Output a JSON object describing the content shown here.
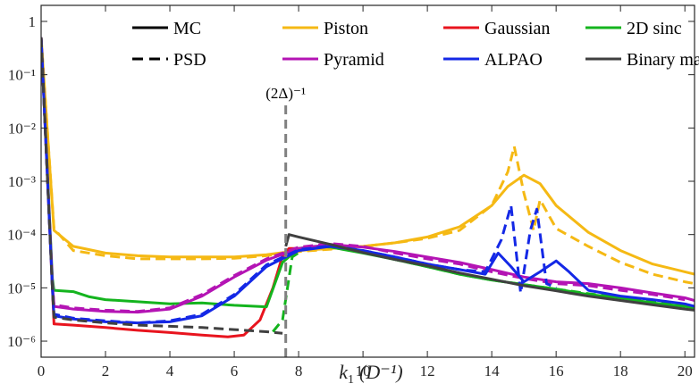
{
  "chart_data": {
    "type": "line",
    "title": "",
    "xlabel": "k",
    "xlabel_sub": "1",
    "xlabel_unit": "(D⁻¹)",
    "ylabel": "",
    "xlim": [
      0,
      20.3
    ],
    "yscale": "log",
    "ylim": [
      5e-07,
      2
    ],
    "x_ticks": [
      0,
      2,
      4,
      6,
      8,
      10,
      12,
      14,
      16,
      18,
      20
    ],
    "y_ticks": [
      {
        "value": 1,
        "label": "1"
      },
      {
        "value": 0.1,
        "label": "10⁻¹"
      },
      {
        "value": 0.01,
        "label": "10⁻²"
      },
      {
        "value": 0.001,
        "label": "10⁻³"
      },
      {
        "value": 0.0001,
        "label": "10⁻⁴"
      },
      {
        "value": 1e-05,
        "label": "10⁻⁵"
      },
      {
        "value": 1e-06,
        "label": "10⁻⁶"
      }
    ],
    "annotation": {
      "label": "(2Δ)⁻¹",
      "x": 7.6
    },
    "legend": {
      "position": "top",
      "entries": [
        {
          "label": "MC",
          "color": "#000000",
          "dash": "solid"
        },
        {
          "label": "Piston",
          "color": "#f5b914",
          "dash": "solid"
        },
        {
          "label": "Gaussian",
          "color": "#e8141e",
          "dash": "solid"
        },
        {
          "label": "2D sinc",
          "color": "#14b41e",
          "dash": "solid"
        },
        {
          "label": "PSD",
          "color": "#000000",
          "dash": "dashed"
        },
        {
          "label": "Pyramid",
          "color": "#b414b4",
          "dash": "solid"
        },
        {
          "label": "ALPAO",
          "color": "#1428e6",
          "dash": "solid"
        },
        {
          "label": "Binary mask",
          "color": "#404040",
          "dash": "solid"
        }
      ]
    },
    "series": [
      {
        "name": "Piston",
        "style": "solid",
        "color": "#f5b914",
        "x": [
          0,
          0.4,
          1,
          2,
          3,
          4,
          5,
          6,
          7,
          8,
          9,
          10,
          11,
          12,
          13,
          14,
          14.5,
          15,
          15.5,
          16,
          17,
          18,
          19,
          20,
          20.3
        ],
        "y": [
          0.5,
          0.00012,
          6e-05,
          4.5e-05,
          4e-05,
          3.8e-05,
          3.8e-05,
          3.8e-05,
          4.2e-05,
          5e-05,
          5.5e-05,
          6e-05,
          7e-05,
          9e-05,
          0.00014,
          0.00035,
          0.0008,
          0.0013,
          0.0009,
          0.00035,
          0.00011,
          5e-05,
          2.8e-05,
          2e-05,
          1.8e-05
        ]
      },
      {
        "name": "Piston PSD",
        "style": "dashed",
        "color": "#f5b914",
        "x": [
          0,
          0.4,
          1,
          2,
          3,
          4,
          5,
          6,
          7,
          8,
          9,
          10,
          11,
          12,
          13,
          14,
          14.5,
          14.7,
          15,
          15.3,
          15.5,
          16,
          17,
          18,
          19,
          20,
          20.3
        ],
        "y": [
          0.5,
          0.00013,
          5e-05,
          4e-05,
          3.5e-05,
          3.5e-05,
          3.5e-05,
          3.6e-05,
          4e-05,
          4.8e-05,
          5.3e-05,
          6e-05,
          7e-05,
          8.5e-05,
          0.00012,
          0.00035,
          0.0015,
          0.0045,
          0.0006,
          0.00012,
          0.00045,
          0.00013,
          6e-05,
          3e-05,
          1.8e-05,
          1.3e-05,
          1.2e-05
        ]
      },
      {
        "name": "Gaussian",
        "style": "solid",
        "color": "#e8141e",
        "x": [
          0,
          0.35,
          0.4,
          1,
          2,
          3,
          4,
          5,
          5.8,
          6.3,
          6.8,
          7.2,
          7.5,
          7.7,
          8,
          8.5
        ],
        "y": [
          0.5,
          1e-05,
          2.1e-06,
          2e-06,
          1.8e-06,
          1.6e-06,
          1.45e-06,
          1.3e-06,
          1.2e-06,
          1.3e-06,
          2.5e-06,
          1e-05,
          4e-05,
          5.5e-05,
          5.5e-05,
          5.6e-05
        ]
      },
      {
        "name": "2D sinc",
        "style": "solid",
        "color": "#14b41e",
        "x": [
          0,
          0.35,
          0.4,
          1,
          1.5,
          2,
          3,
          4,
          5,
          6,
          7,
          7.5,
          8,
          8.5,
          9,
          10,
          11,
          12,
          13,
          14,
          15,
          16,
          17,
          18,
          19,
          20,
          20.3
        ],
        "y": [
          0.5,
          1.5e-05,
          9e-06,
          8.5e-06,
          6.8e-06,
          6e-06,
          5.5e-06,
          5e-06,
          5.2e-06,
          4.7e-06,
          4.4e-06,
          3e-05,
          5.5e-05,
          6e-05,
          5.8e-05,
          4.5e-05,
          3.4e-05,
          2.5e-05,
          1.8e-05,
          1.4e-05,
          1.15e-05,
          9.5e-06,
          7.5e-06,
          6.5e-06,
          5.2e-06,
          4.5e-06,
          4.2e-06
        ]
      },
      {
        "name": "2D sinc PSD",
        "style": "dashed",
        "color": "#14b41e",
        "x": [
          7.2,
          7.5,
          7.8,
          8.2,
          9,
          10,
          11,
          12,
          13,
          14,
          15,
          16,
          17,
          18,
          19,
          20
        ],
        "y": [
          1.5e-06,
          2.5e-06,
          3.8e-05,
          5.5e-05,
          6e-05,
          4.6e-05,
          3.4e-05,
          2.5e-05,
          1.8e-05,
          1.4e-05,
          1.15e-05,
          9.5e-06,
          7.8e-06,
          6.5e-06,
          5.5e-06,
          4.6e-06
        ]
      },
      {
        "name": "Pyramid",
        "style": "solid",
        "color": "#b414b4",
        "x": [
          0,
          0.35,
          0.4,
          1,
          2,
          3,
          4,
          5,
          6,
          7,
          8,
          9,
          10,
          11,
          12,
          13,
          14,
          15,
          16,
          17,
          18,
          19,
          20,
          20.3
        ],
        "y": [
          0.5,
          1.2e-05,
          4.5e-06,
          4e-06,
          3.6e-06,
          3.5e-06,
          4e-06,
          7e-06,
          1.6e-05,
          3.3e-05,
          5.5e-05,
          6.5e-05,
          5.8e-05,
          4.8e-05,
          3.8e-05,
          3e-05,
          2.2e-05,
          1.6e-05,
          1.3e-05,
          1.2e-05,
          1e-05,
          8e-06,
          6.5e-06,
          5.8e-06
        ]
      },
      {
        "name": "Pyramid PSD",
        "style": "dashed",
        "color": "#b414b4",
        "x": [
          0,
          0.35,
          0.4,
          1,
          2,
          3,
          4,
          5,
          6,
          7,
          8,
          9,
          10,
          11,
          12,
          13,
          14,
          15,
          16,
          17,
          18,
          19,
          20
        ],
        "y": [
          0.5,
          1.3e-05,
          4.8e-06,
          4.2e-06,
          3.8e-06,
          3.6e-06,
          4.2e-06,
          7.5e-06,
          1.7e-05,
          3.5e-05,
          5.8e-05,
          6.8e-05,
          6e-05,
          4.5e-05,
          3.5e-05,
          2.8e-05,
          2e-05,
          1.5e-05,
          1.2e-05,
          1.1e-05,
          9e-06,
          7.5e-06,
          6e-06
        ]
      },
      {
        "name": "ALPAO",
        "style": "solid",
        "color": "#1428e6",
        "x": [
          0,
          0.35,
          0.4,
          1,
          2,
          3,
          4,
          5,
          6,
          7,
          8,
          9,
          10,
          11,
          12,
          13,
          13.8,
          14.2,
          14.6,
          15,
          15.5,
          16,
          16.4,
          17,
          18,
          19,
          20,
          20.3
        ],
        "y": [
          0.5,
          1e-05,
          3e-06,
          2.6e-06,
          2.3e-06,
          2.2e-06,
          2.3e-06,
          3e-06,
          7e-06,
          2.5e-05,
          5e-05,
          6e-05,
          5e-05,
          3.8e-05,
          2.8e-05,
          2.2e-05,
          1.8e-05,
          4.5e-05,
          2.5e-05,
          1.3e-05,
          2e-05,
          3.2e-05,
          2e-05,
          9e-06,
          7e-06,
          6e-06,
          5e-06,
          4.5e-06
        ]
      },
      {
        "name": "ALPAO PSD",
        "style": "dashed",
        "color": "#1428e6",
        "x": [
          0,
          0.35,
          0.4,
          1,
          2,
          3,
          4,
          5,
          6,
          7,
          8,
          9,
          10,
          11,
          12,
          13,
          13.8,
          14.3,
          14.6,
          14.9,
          15.2,
          15.4,
          15.7,
          16
        ],
        "y": [
          0.5,
          1e-05,
          3.2e-06,
          2.7e-06,
          2.4e-06,
          2.2e-06,
          2.4e-06,
          3.2e-06,
          7.5e-06,
          2.7e-05,
          5.2e-05,
          6.2e-05,
          5e-05,
          3.8e-05,
          2.8e-05,
          2.2e-05,
          2e-05,
          8e-05,
          0.00035,
          8e-06,
          0.00012,
          0.0003,
          1.2e-05,
          1e-05
        ]
      },
      {
        "name": "Binary mask",
        "style": "solid",
        "color": "#404040",
        "x": [
          7.6,
          7.7,
          8,
          9,
          10,
          11,
          12,
          13,
          14,
          15,
          16,
          17,
          18,
          19,
          20,
          20.3
        ],
        "y": [
          6e-05,
          0.0001,
          9e-05,
          6.5e-05,
          4.6e-05,
          3.4e-05,
          2.6e-05,
          1.9e-05,
          1.45e-05,
          1.1e-05,
          8.8e-06,
          7e-06,
          5.8e-06,
          4.8e-06,
          4e-06,
          3.8e-06
        ]
      },
      {
        "name": "Binary mask PSD",
        "style": "dashed",
        "color": "#404040",
        "x": [
          0,
          0.35,
          0.4,
          1,
          2,
          3,
          4,
          5,
          6,
          7,
          7.5
        ],
        "y": [
          0.5,
          1e-05,
          2.8e-06,
          2.5e-06,
          2.2e-06,
          2e-06,
          1.9e-06,
          1.8e-06,
          1.65e-06,
          1.5e-06,
          1.4e-06
        ]
      }
    ]
  }
}
